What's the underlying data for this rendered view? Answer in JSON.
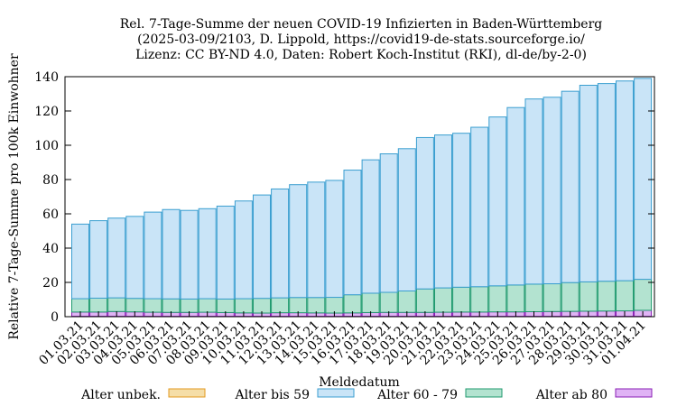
{
  "chart_data": {
    "type": "bar",
    "stacked": true,
    "title_lines": [
      "Rel. 7-Tage-Summe der neuen COVID-19 Infizierten in Baden-Württemberg",
      "(2025-03-09/2103, D. Lippold, https://covid19-de-stats.sourceforge.io/",
      "Lizenz: CC BY-ND 4.0, Daten: Robert Koch-Institut (RKI), dl-de/by-2-0)"
    ],
    "xlabel": "Meldedatum",
    "ylabel": "Relative 7-Tage-Summe pro 100k Einwohner",
    "ylim": [
      0,
      140
    ],
    "yticks": [
      0,
      20,
      40,
      60,
      80,
      100,
      120,
      140
    ],
    "grid": false,
    "legend_position": "bottom",
    "categories": [
      "01.03.21",
      "02.03.21",
      "03.03.21",
      "04.03.21",
      "05.03.21",
      "06.03.21",
      "07.03.21",
      "08.03.21",
      "09.03.21",
      "10.03.21",
      "11.03.21",
      "12.03.21",
      "13.03.21",
      "14.03.21",
      "15.03.21",
      "16.03.21",
      "17.03.21",
      "18.03.21",
      "19.03.21",
      "20.03.21",
      "21.03.21",
      "22.03.21",
      "23.03.21",
      "24.03.21",
      "25.03.21",
      "26.03.21",
      "27.03.21",
      "28.03.21",
      "29.03.21",
      "30.03.21",
      "31.03.21",
      "01.04.21"
    ],
    "totals": [
      54,
      56,
      57.5,
      58.5,
      61,
      62.5,
      62,
      63,
      64.5,
      67.5,
      71,
      74.5,
      77,
      78.5,
      79.5,
      85.5,
      91.5,
      95,
      98,
      104.5,
      106,
      107,
      110.5,
      116.5,
      122,
      127,
      128,
      131.5,
      135,
      136,
      137.5,
      139
    ],
    "series": [
      {
        "name": "Alter unbek.",
        "color": "#f5dea8",
        "stroke": "#e39a1f",
        "values": [
          0.2,
          0.2,
          0.2,
          0.2,
          0.2,
          0.2,
          0.2,
          0.2,
          0.2,
          0.2,
          0.2,
          0.2,
          0.2,
          0.2,
          0.2,
          0.2,
          0.2,
          0.2,
          0.2,
          0.2,
          0.2,
          0.2,
          0.2,
          0.2,
          0.2,
          0.2,
          0.2,
          0.2,
          0.2,
          0.2,
          0.2,
          0.2
        ]
      },
      {
        "name": "Alter ab 80",
        "color": "#e0b3f5",
        "stroke": "#8a1fb5",
        "values": [
          2.5,
          2.5,
          2.8,
          2.6,
          2.4,
          2.3,
          2.3,
          2.4,
          2.2,
          2.0,
          1.9,
          2.1,
          2.1,
          2.0,
          1.9,
          2.0,
          2.2,
          2.3,
          2.3,
          2.3,
          2.4,
          2.5,
          2.5,
          2.6,
          2.6,
          2.7,
          2.8,
          2.9,
          3.0,
          3.1,
          3.2,
          3.5
        ]
      },
      {
        "name": "Alter 60 - 79",
        "color": "#b3e3d0",
        "stroke": "#1f9a6e",
        "values": [
          7.8,
          8.1,
          8.0,
          7.9,
          7.9,
          7.9,
          7.8,
          7.9,
          7.9,
          8.3,
          8.6,
          8.7,
          8.9,
          9.0,
          9.2,
          10.6,
          11.3,
          11.7,
          12.5,
          13.7,
          14.2,
          14.5,
          14.8,
          15.2,
          15.7,
          16.1,
          16.2,
          16.8,
          17.1,
          17.4,
          17.6,
          18.1
        ]
      },
      {
        "name": "Alter bis 59",
        "color": "#c9e4f7",
        "stroke": "#3a9ed0",
        "values": [
          43.5,
          45.2,
          46.5,
          47.8,
          50.5,
          52.1,
          51.7,
          52.5,
          54.2,
          57.0,
          60.3,
          63.5,
          65.8,
          67.3,
          68.2,
          72.7,
          77.8,
          80.8,
          83.0,
          88.3,
          89.2,
          89.8,
          93.0,
          98.5,
          103.5,
          108.0,
          108.8,
          111.6,
          114.7,
          115.3,
          116.5,
          117.2
        ]
      }
    ],
    "legend_order": [
      "Alter unbek.",
      "Alter bis 59",
      "Alter 60 - 79",
      "Alter ab 80"
    ]
  }
}
